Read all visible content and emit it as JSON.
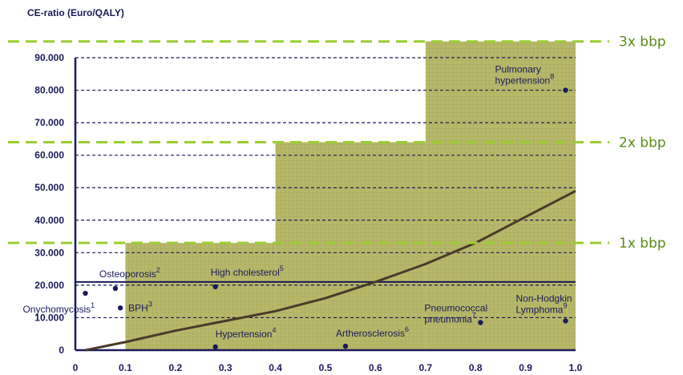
{
  "chart_data": {
    "type": "scatter",
    "title": "CE-ratio (Euro/QALY)",
    "xlim": [
      0,
      1.0
    ],
    "ylim": [
      0,
      95000
    ],
    "x_ticks": [
      "0",
      "0.1",
      "0.2",
      "0.3",
      "0.4",
      "0.5",
      "0.6",
      "0.7",
      "0.8",
      "0.9",
      "1.0"
    ],
    "x_tick_values": [
      0,
      0.1,
      0.2,
      0.3,
      0.4,
      0.5,
      0.6,
      0.7,
      0.8,
      0.9,
      1.0
    ],
    "y_ticks": [
      "0",
      "10.000",
      "20.000",
      "30.000",
      "40.000",
      "50.000",
      "60.000",
      "70.000",
      "80.000",
      "90.000"
    ],
    "y_tick_values": [
      0,
      10000,
      20000,
      30000,
      40000,
      50000,
      60000,
      70000,
      80000,
      90000
    ],
    "points": [
      {
        "x": 0.02,
        "y": 17500,
        "label": "Onychomycosis",
        "sup": "1"
      },
      {
        "x": 0.08,
        "y": 19000,
        "label": "Osteoporosis",
        "sup": "2"
      },
      {
        "x": 0.09,
        "y": 13000,
        "label": "BPH",
        "sup": "3"
      },
      {
        "x": 0.28,
        "y": 1000,
        "label": "Hypertension",
        "sup": "4"
      },
      {
        "x": 0.28,
        "y": 19500,
        "label": "High cholesterol",
        "sup": "5"
      },
      {
        "x": 0.54,
        "y": 1200,
        "label": "Artherosclerosis",
        "sup": "6"
      },
      {
        "x": 0.81,
        "y": 8500,
        "label": "Pneumococcal pneumonia",
        "sup": "7"
      },
      {
        "x": 0.98,
        "y": 80000,
        "label": "Pulmonary hypertension",
        "sup": "8"
      },
      {
        "x": 0.98,
        "y": 9000,
        "label": "Non-Hodgkin Lymphoma",
        "sup": "9"
      }
    ],
    "curve": {
      "x": [
        0.02,
        0.1,
        0.2,
        0.3,
        0.4,
        0.5,
        0.6,
        0.7,
        0.8,
        0.9,
        1.0
      ],
      "y": [
        0,
        2500,
        6000,
        9000,
        12000,
        16000,
        21000,
        26500,
        33000,
        41000,
        49000
      ]
    },
    "thresholds": [
      {
        "label": "1x bbp",
        "y": 33000,
        "x_start": 0.1
      },
      {
        "label": "2x bbp",
        "y": 64000,
        "x_start": 0.4
      },
      {
        "label": "3x bbp",
        "y": 95000,
        "x_start": 0.7
      }
    ],
    "reference_line": {
      "y": 21000
    },
    "dashed_gridlines": [
      0,
      10000,
      20000,
      30000,
      40000,
      50000,
      60000,
      70000,
      80000,
      90000
    ],
    "colors": {
      "axis": "#1a1a5a",
      "fill": "#b8b86a",
      "threshold": "#9acd32",
      "threshold_text": "#5a8a1a",
      "curve": "#4a3a2a"
    }
  }
}
